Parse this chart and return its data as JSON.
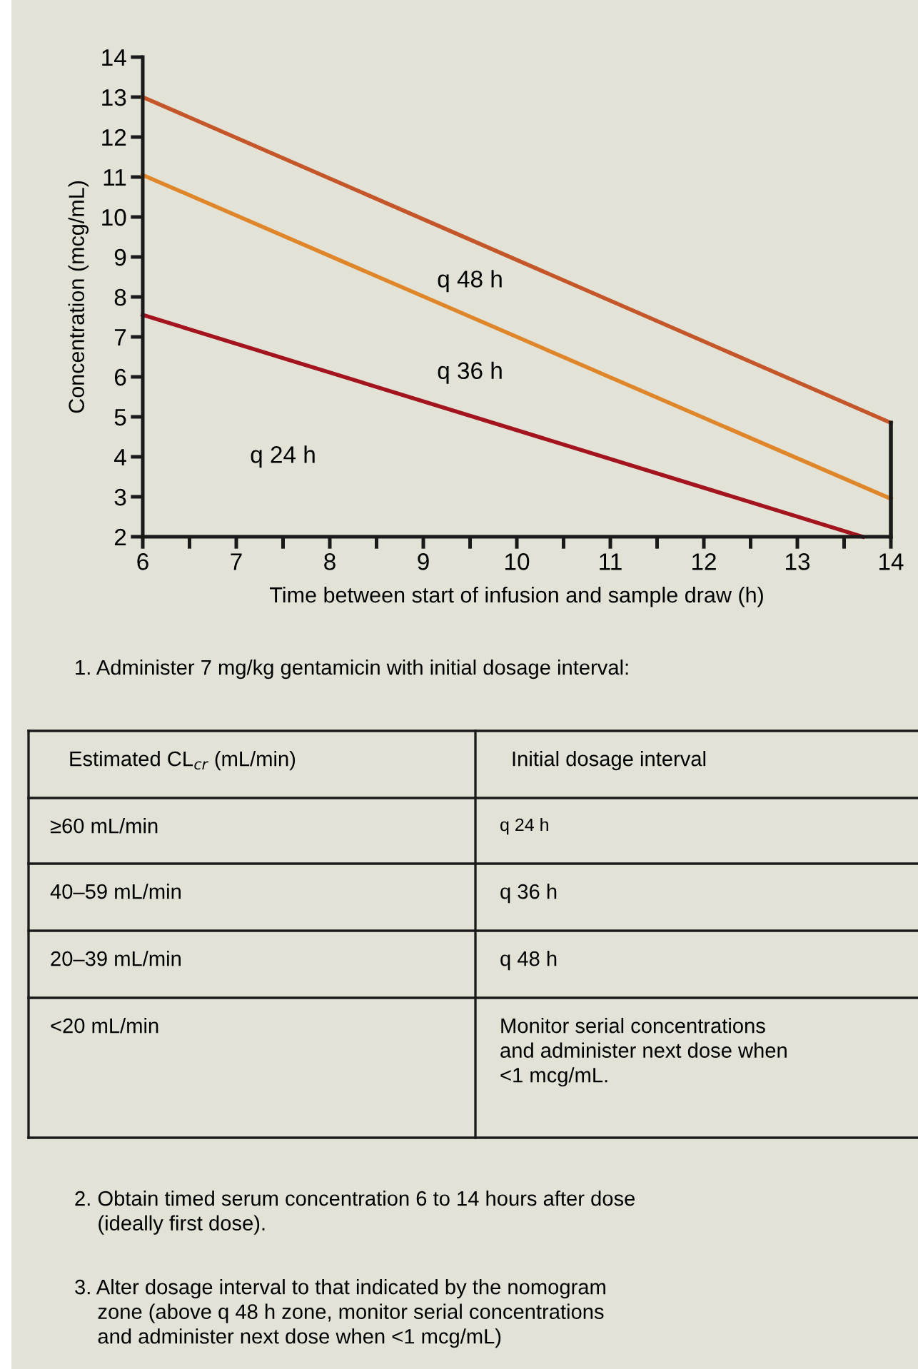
{
  "chart_data": {
    "type": "line",
    "xlabel": "Time between start of infusion and sample draw (h)",
    "ylabel": "Concentration (mcg/mL)",
    "xlim": [
      6,
      14
    ],
    "ylim": [
      2,
      14
    ],
    "xticks": [
      6,
      {
        "value": 6.5,
        "label": null
      },
      7,
      {
        "value": 7.5,
        "label": null
      },
      8,
      {
        "value": 8.5,
        "label": null
      },
      9,
      {
        "value": 9.5,
        "label": null
      },
      10,
      {
        "value": 10.5,
        "label": null
      },
      11,
      {
        "value": 11.5,
        "label": null
      },
      12,
      {
        "value": 12.5,
        "label": null
      },
      13,
      {
        "value": 13.5,
        "label": null
      },
      14
    ],
    "yticks": [
      2,
      3,
      4,
      5,
      6,
      7,
      8,
      9,
      10,
      11,
      12,
      13,
      14
    ],
    "grid": false,
    "marker": "none",
    "line_style": "solid",
    "series": [
      {
        "color": "#c4562a",
        "x": [
          6,
          14
        ],
        "values": [
          13.0,
          4.85
        ]
      },
      {
        "color": "#e0862a",
        "x": [
          6,
          14
        ],
        "values": [
          11.05,
          2.95
        ]
      },
      {
        "color": "#a3141e",
        "x": [
          6,
          13.7
        ],
        "values": [
          7.55,
          2.0
        ]
      },
      {
        "color": "#1a1a1a",
        "x": [
          14,
          14
        ],
        "values": [
          2.0,
          4.85
        ]
      }
    ],
    "annotations": [
      "q 48 h",
      "q 36 h",
      "q 24 h",
      "1. Administer 7 mg/kg gentamicin with initial dosage interval:",
      "Estimated CL$_{cr}$ (mL/min)",
      "Initial dosage interval",
      "≥60 mL/min",
      "q 24 h",
      "40–59 mL/min",
      "q 36 h",
      "20–39 mL/min",
      "q 48 h",
      "<20 mL/min",
      "Monitor serial concentrations\nand administer next dose when\n<1 mcg/mL.",
      "2. Obtain timed serum concentration 6 to 14 hours after dose\n    (ideally first dose).",
      "3. Alter dosage interval to that indicated by the nomogram\n    zone (above q 48 h zone, monitor serial concentrations\n    and administer next dose when <1 mcg/mL)"
    ]
  }
}
